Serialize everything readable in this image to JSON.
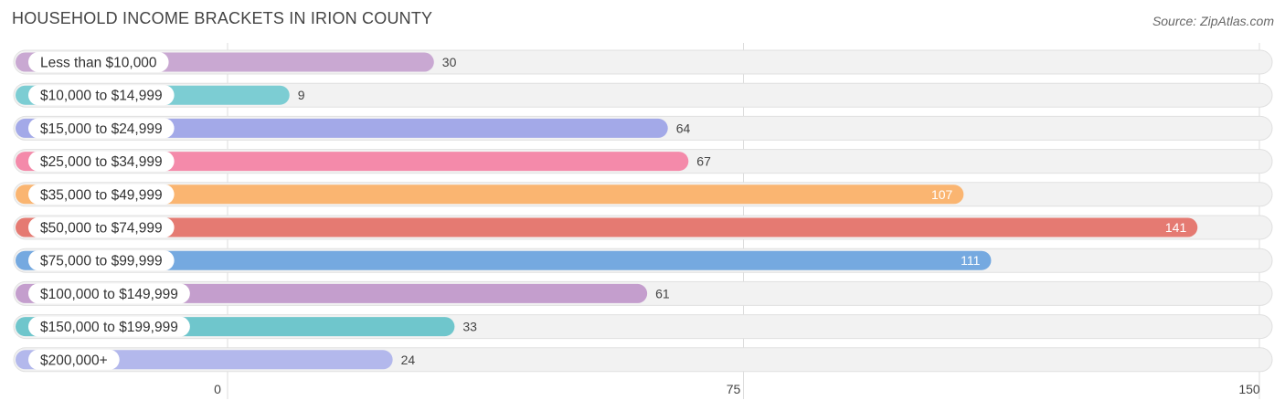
{
  "chart_data": {
    "type": "bar",
    "orientation": "horizontal",
    "title": "HOUSEHOLD INCOME BRACKETS IN IRION COUNTY",
    "source": "Source: ZipAtlas.com",
    "categories": [
      "Less than $10,000",
      "$10,000 to $14,999",
      "$15,000 to $24,999",
      "$25,000 to $34,999",
      "$35,000 to $49,999",
      "$50,000 to $74,999",
      "$75,000 to $99,999",
      "$100,000 to $149,999",
      "$150,000 to $199,999",
      "$200,000+"
    ],
    "values": [
      30,
      9,
      64,
      67,
      107,
      141,
      111,
      61,
      33,
      24
    ],
    "colors": [
      "#c9a8d2",
      "#7ccdd3",
      "#a3a9e8",
      "#f48aaa",
      "#fab571",
      "#e57a72",
      "#75a9e0",
      "#c49ecd",
      "#6fc6cc",
      "#b3b8ec"
    ],
    "xlim": [
      0,
      150
    ],
    "xticks": [
      "0",
      "75",
      "150"
    ],
    "grid": true,
    "legend": false
  }
}
